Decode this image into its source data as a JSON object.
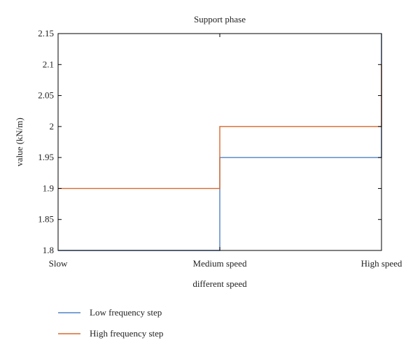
{
  "chart_data": {
    "type": "line",
    "title": "Support phase",
    "xlabel": "different speed",
    "ylabel": "value (kN/m)",
    "categories": [
      "Slow",
      "Medium speed",
      "High speed"
    ],
    "ylim": [
      1.8,
      2.15
    ],
    "yticks": [
      1.8,
      1.85,
      1.9,
      1.95,
      2,
      2.05,
      2.1,
      2.15
    ],
    "ytick_labels": [
      "1.8",
      "1.85",
      "1.9",
      "1.95",
      "2",
      "2.05",
      "2.1",
      "2.15"
    ],
    "step": "post",
    "grid": false,
    "legend_position": "bottom-left",
    "series": [
      {
        "name": "Low frequency step",
        "color": "#4f81c7",
        "values": [
          1.8,
          1.95,
          2.15
        ]
      },
      {
        "name": "High frequency step",
        "color": "#d9682b",
        "values": [
          1.9,
          2.0,
          2.1
        ]
      }
    ]
  }
}
